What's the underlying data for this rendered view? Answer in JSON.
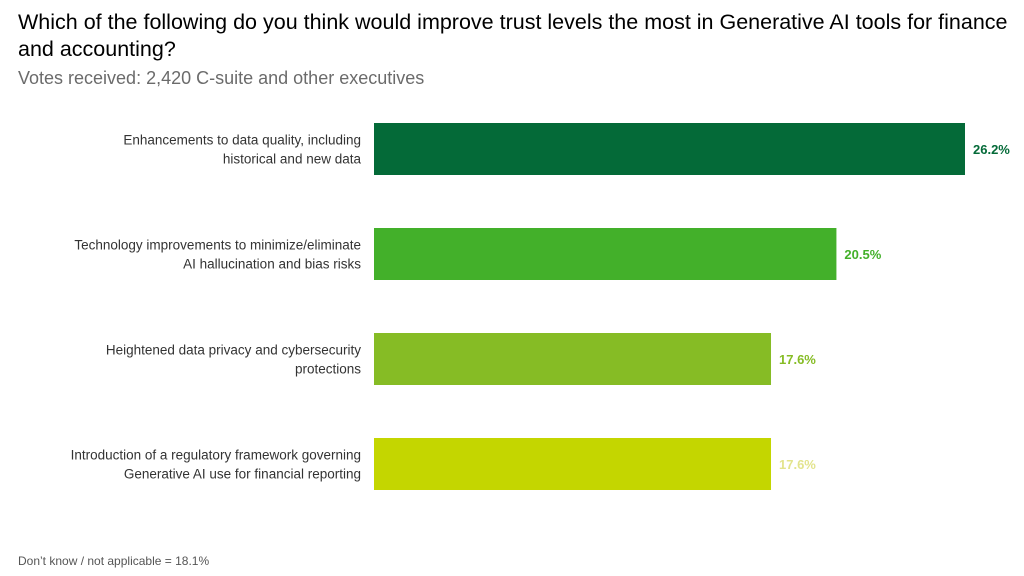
{
  "title": "Which of the following do you think would improve trust levels the most in Generative AI tools for finance and accounting?",
  "subtitle": "Votes received: 2,420 C-suite and other executives",
  "footnote": "Don’t know / not applicable = 18.1%",
  "chart_data": {
    "type": "bar",
    "orientation": "horizontal",
    "title": "Which of the following do you think would improve trust levels the most in Generative AI tools for finance and accounting?",
    "subtitle": "Votes received: 2,420 C-suite and other executives",
    "xlabel": "",
    "ylabel": "",
    "unit": "%",
    "xlim": [
      0,
      26.2
    ],
    "grid": false,
    "legend": "none",
    "categories": [
      [
        "Enhancements to data quality, including",
        "historical and new data"
      ],
      [
        "Technology improvements to minimize/eliminate",
        "AI hallucination and bias risks"
      ],
      [
        "Heightened data privacy and cybersecurity",
        "protections"
      ],
      [
        "Introduction of a regulatory framework governing",
        "Generative AI use for financial reporting"
      ]
    ],
    "values": [
      26.2,
      20.5,
      17.6,
      17.6
    ],
    "value_labels": [
      "26.2%",
      "20.5%",
      "17.6%",
      "17.6%"
    ],
    "bar_colors": [
      "#046A38",
      "#43B02A",
      "#86BC25",
      "#C4D600"
    ],
    "label_colors": [
      "#046A38",
      "#43B02A",
      "#86BC25",
      "#E3E48D"
    ],
    "annotations": [
      "Don’t know / not applicable = 18.1%"
    ]
  }
}
